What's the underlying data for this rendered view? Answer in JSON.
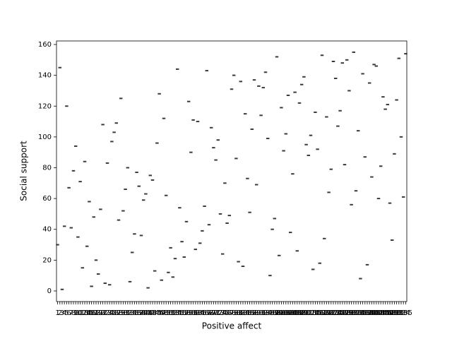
{
  "chart_data": {
    "type": "box",
    "x_label": "Positive affect",
    "y_label": "Social support",
    "categories": [
      "1",
      "2",
      "3",
      "4",
      "5",
      "6",
      "7",
      "8",
      "9",
      "10",
      "11",
      "12",
      "13",
      "14",
      "15",
      "16",
      "17",
      "18",
      "19",
      "20",
      "21",
      "22",
      "23",
      "24",
      "25",
      "26",
      "27",
      "28",
      "29",
      "30",
      "31",
      "32",
      "33",
      "34",
      "35",
      "36",
      "37",
      "38",
      "39",
      "40",
      "41",
      "42",
      "43",
      "44",
      "45",
      "46",
      "47",
      "48",
      "49",
      "50",
      "51",
      "52",
      "53",
      "54",
      "55",
      "56",
      "57",
      "58",
      "59",
      "60",
      "61",
      "62",
      "63",
      "64",
      "65",
      "66",
      "67",
      "68",
      "69",
      "70",
      "71",
      "72",
      "73",
      "74",
      "75",
      "76",
      "77",
      "78",
      "79",
      "80",
      "81",
      "82",
      "83",
      "84",
      "85",
      "86",
      "87",
      "88",
      "89",
      "90",
      "91",
      "92",
      "93",
      "94",
      "95",
      "96",
      "97",
      "98",
      "99",
      "100",
      "101",
      "102",
      "103",
      "104",
      "105",
      "106",
      "107",
      "108",
      "109",
      "110",
      "111",
      "112",
      "113",
      "114",
      "115",
      "116",
      "117",
      "118",
      "119",
      "120",
      "121",
      "122",
      "123",
      "124",
      "125",
      "126",
      "127",
      "128",
      "129",
      "130",
      "131",
      "132",
      "133",
      "134",
      "135",
      "136",
      "137",
      "138",
      "139",
      "140",
      "141",
      "142",
      "143",
      "144",
      "145",
      "146",
      "147",
      "148",
      "149",
      "150",
      "151",
      "152",
      "153",
      "154",
      "155"
    ],
    "values": [
      30,
      145,
      1,
      42,
      120,
      67,
      41,
      78,
      94,
      35,
      71,
      15,
      84,
      29,
      58,
      3,
      48,
      20,
      11,
      53,
      108,
      5,
      83,
      4,
      97,
      103,
      109,
      46,
      125,
      52,
      66,
      80,
      6,
      25,
      37,
      77,
      68,
      36,
      59,
      63,
      2,
      75,
      72,
      13,
      96,
      128,
      7,
      112,
      62,
      12,
      28,
      9,
      21,
      144,
      54,
      32,
      22,
      45,
      123,
      90,
      111,
      27,
      110,
      31,
      39,
      55,
      143,
      43,
      106,
      93,
      85,
      98,
      50,
      24,
      70,
      44,
      49,
      131,
      140,
      86,
      19,
      136,
      16,
      115,
      73,
      51,
      105,
      137,
      69,
      133,
      114,
      132,
      142,
      99,
      10,
      40,
      47,
      152,
      23,
      119,
      91,
      102,
      127,
      38,
      76,
      129,
      26,
      122,
      134,
      139,
      95,
      88,
      101,
      14,
      116,
      92,
      18,
      153,
      34,
      113,
      64,
      79,
      149,
      138,
      107,
      117,
      148,
      82,
      150,
      130,
      56,
      155,
      65,
      104,
      8,
      141,
      87,
      17,
      135,
      74,
      147,
      146,
      60,
      81,
      126,
      118,
      121,
      57,
      33,
      89,
      124,
      151,
      100,
      61,
      154
    ],
    "color": "#3a3a3a",
    "ylim": [
      -6.9,
      162.3
    ],
    "yticks": [
      0,
      20,
      40,
      60,
      80,
      100,
      120,
      140,
      160
    ]
  }
}
